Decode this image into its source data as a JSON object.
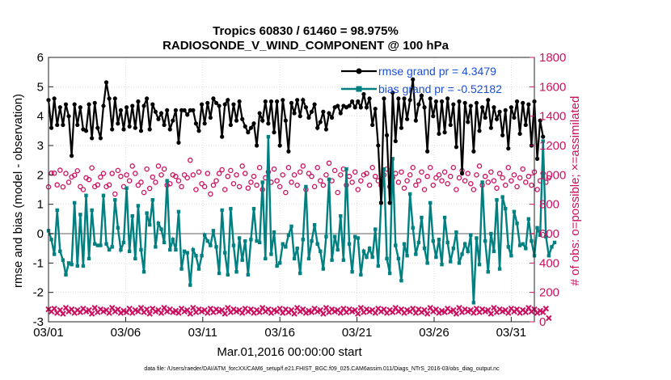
{
  "chart_data": {
    "type": "line",
    "title_line1": "Tropics 60830 / 61460 = 98.975%",
    "title_line2": "RADIOSONDE_V_WIND_COMPONENT @ 100 hPa",
    "xlabel": "Mar.01,2016 00:00:00 start",
    "ylabel_left": "rmse and bias (model - observation)",
    "ylabel_right": "# of obs: o=possible; ×=assimilated",
    "footer": "data file: /Users/raeder/DAI/ATM_forcXX/CAM6_setup/f.e21.FHIST_BGC.f09_025.CAM6assim.011/Diags_NTrS_2016-03/obs_diag_output.nc",
    "x_tick_labels": [
      "03/01",
      "03/06",
      "03/11",
      "03/16",
      "03/21",
      "03/26",
      "03/31"
    ],
    "x_tick_days": [
      0,
      5,
      10,
      15,
      20,
      25,
      30
    ],
    "xlim": [
      0,
      31.5
    ],
    "ylim_left": [
      -3,
      6
    ],
    "yticks_left": [
      "-3",
      "-2",
      "-1",
      "0",
      "1",
      "2",
      "3",
      "4",
      "5",
      "6"
    ],
    "ylim_right": [
      0,
      1800
    ],
    "yticks_right": [
      "0",
      "200",
      "400",
      "600",
      "800",
      "1000",
      "1200",
      "1400",
      "1600",
      "1800"
    ],
    "colors": {
      "rmse": "#000000",
      "bias": "#008080",
      "obs": "#cc1060",
      "zero_line": "#b0b0b0",
      "legend_text": "#1a4fd6"
    },
    "series": [
      {
        "name": "rmse grand pr = 4.3479",
        "axis": "left",
        "values": [
          4.55,
          3.6,
          4.6,
          3.7,
          4.3,
          3.7,
          4.4,
          4.0,
          2.65,
          4.4,
          3.7,
          4.3,
          3.55,
          3.5,
          4.4,
          3.25,
          4.45,
          3.6,
          3.25,
          4.35,
          5.15,
          4.6,
          3.55,
          4.6,
          3.75,
          4.2,
          3.55,
          4.3,
          3.65,
          4.35,
          3.6,
          4.5,
          3.5,
          4.35,
          4.6,
          3.55,
          4.4,
          4.15,
          3.9,
          4.1,
          3.7,
          4.2,
          3.55,
          3.85,
          4.2,
          3.1,
          4.2,
          4.2,
          4.05,
          4.2,
          4.2,
          3.75,
          3.5,
          4.4,
          3.75,
          4.45,
          3.95,
          4.6,
          4.45,
          4.35,
          3.3,
          4.4,
          4.55,
          3.7,
          4.4,
          3.85,
          4.5,
          3.9,
          3.65,
          3.45,
          3.6,
          3.75,
          3.0,
          4.1,
          3.85,
          4.5,
          3.75,
          4.5,
          3.45,
          4.5,
          3.0,
          4.55,
          3.85,
          2.8,
          4.45,
          4.1,
          4.55,
          4.0,
          4.55,
          4.3,
          3.95,
          4.15,
          4.4,
          3.6,
          3.8,
          4.15,
          3.55,
          4.1,
          3.95,
          4.3,
          4.35,
          4.1,
          4.35,
          4.3,
          4.35,
          4.5,
          4.3,
          4.5,
          4.3,
          4.75,
          4.3,
          4.6,
          3.7,
          4.25,
          3.0,
          1.05,
          4.6,
          3.35,
          1.05,
          4.8,
          3.15,
          4.6,
          3.6,
          4.6,
          3.9,
          4.55,
          5.25,
          3.85,
          4.4,
          4.7,
          4.3,
          2.8,
          4.6,
          4.0,
          4.5,
          3.4,
          4.5,
          3.45,
          4.6,
          3.7,
          4.4,
          2.95,
          4.5,
          2.05,
          4.45,
          3.8,
          4.35,
          2.8,
          4.45,
          3.5,
          4.3,
          3.95,
          4.55,
          3.6,
          4.3,
          3.9,
          4.15,
          3.35,
          4.2,
          2.9,
          4.3,
          3.95,
          4.5,
          3.4,
          4.45,
          3.7,
          4.4,
          3.0,
          4.5,
          2.55,
          3.85,
          3.3
        ],
        "x_start": 0,
        "x_step": 0.1875
      },
      {
        "name": "bias grand pr = -0.52182",
        "axis": "left",
        "values": [
          0.1,
          -0.2,
          -0.7,
          0.8,
          -0.6,
          -0.9,
          -1.4,
          -1.0,
          -1.05,
          1.05,
          -1.1,
          0.65,
          -1.1,
          1.3,
          -0.85,
          0.8,
          -0.35,
          -0.4,
          -0.4,
          1.3,
          -0.35,
          -0.55,
          -0.45,
          1.15,
          0.2,
          -0.55,
          -0.3,
          1.55,
          -0.6,
          0.6,
          -0.85,
          0.95,
          -0.55,
          -1.3,
          0.7,
          0.3,
          1.15,
          -0.45,
          0.35,
          0.15,
          -0.3,
          1.8,
          -0.55,
          -0.2,
          -0.55,
          0.75,
          -1.2,
          -0.6,
          -0.65,
          -1.75,
          -0.55,
          -0.75,
          -1.2,
          -0.75,
          -0.05,
          -0.25,
          -0.4,
          0.1,
          -0.45,
          -1.35,
          0.8,
          -0.65,
          -1.4,
          0.85,
          -0.4,
          -1.3,
          -0.15,
          -0.9,
          -0.25,
          -1.4,
          -0.2,
          0.85,
          -0.25,
          -0.3,
          1.75,
          -0.85,
          3.3,
          -0.7,
          0.05,
          -1.1,
          -1.0,
          -0.35,
          -0.45,
          -0.05,
          0.25,
          -0.85,
          -0.5,
          -1.35,
          -0.2,
          1.6,
          -0.85,
          -0.25,
          0.3,
          -0.35,
          -0.6,
          -1.2,
          -0.1,
          1.85,
          -0.9,
          -0.1,
          -0.55,
          0.6,
          -0.9,
          2.2,
          -0.35,
          -1.3,
          -0.1,
          -0.15,
          -1.4,
          -0.6,
          -0.8,
          -0.5,
          -0.8,
          0.15,
          -1.1,
          1.05,
          2.2,
          -0.85,
          -1.35,
          2.55,
          -0.4,
          -0.85,
          -1.6,
          -0.35,
          -0.75,
          1.35,
          0.2,
          -0.7,
          -0.3,
          0.55,
          -0.5,
          -1.0,
          1.05,
          -0.25,
          -0.8,
          -0.2,
          -1.05,
          0.55,
          -0.3,
          -0.95,
          -0.5,
          0.05,
          -1.0,
          -0.7,
          -0.35,
          -0.6,
          -0.05,
          -2.35,
          -0.15,
          -1.05,
          1.75,
          -0.25,
          -1.3,
          0.0,
          -0.6,
          1.15,
          -1.2,
          1.25,
          0.85,
          -0.45,
          -0.75,
          0.75,
          0.35,
          -0.4,
          -0.35,
          -0.5,
          0.5,
          -0.25,
          -0.75,
          0.2,
          -0.05,
          3.15,
          -0.1,
          -0.75,
          -0.45,
          -0.3
        ],
        "x_start": 0,
        "x_step": 0.1875
      },
      {
        "name": "obs possible",
        "axis": "right",
        "marker": "o",
        "values": [
          918,
          1012,
          1012,
          932,
          1032,
          918,
          1010,
          950,
          986,
          998,
          1028,
          920,
          900,
          980,
          968,
          1048,
          920,
          932,
          985,
          1010,
          920,
          932,
          1010,
          870,
          1030,
          990,
          920,
          1000,
          960,
          1060,
          1010,
          930,
          950,
          880,
          1040,
          908,
          985,
          950,
          1060,
          1000,
          1040,
          930,
          940,
          1000,
          990,
          960,
          920,
          1000,
          980,
          1100,
          1000,
          900,
          1020,
          940,
          920,
          1010,
          870,
          930,
          960,
          1010,
          1035,
          900,
          990,
          1030,
          940,
          1000,
          920,
          1060,
          1010,
          910,
          950,
          990,
          930,
          1050,
          900,
          980,
          1020,
          950,
          1040,
          960,
          920,
          1000,
          880,
          1050,
          950,
          1000,
          930,
          1020,
          1060,
          900,
          1010,
          990,
          920,
          1050,
          960,
          930,
          1000,
          1080,
          960,
          1030,
          880,
          1000,
          1040,
          930,
          990,
          950,
          1020,
          900,
          960,
          1000,
          1010,
          930,
          1050,
          990,
          960,
          930,
          1000,
          1040,
          920,
          980,
          1010,
          950,
          1020,
          910,
          960,
          1000,
          1050,
          930,
          960,
          1020,
          900,
          990,
          1050,
          930,
          980,
          1000,
          960,
          1020,
          940,
          990,
          1050,
          900,
          980,
          1030,
          960,
          1010,
          940,
          900,
          1000,
          1060,
          930,
          990,
          950,
          1020,
          960,
          910,
          1010,
          980,
          930,
          1050,
          960,
          1000,
          920,
          980,
          1040,
          950,
          990,
          930,
          1020,
          900,
          960,
          1010,
          950,
          980
        ],
        "x_start": 0,
        "x_step": 0.1875
      },
      {
        "name": "obs assimilated",
        "axis": "right",
        "marker": "x",
        "values": [
          85,
          70,
          90,
          60,
          80,
          55,
          95,
          70,
          85,
          60,
          80,
          65,
          90,
          70,
          80,
          55,
          95,
          65,
          85,
          70,
          80,
          60,
          95,
          70,
          85,
          60,
          75,
          65,
          90,
          60,
          80,
          70,
          95,
          65,
          85,
          55,
          90,
          70,
          80,
          60,
          95,
          70,
          85,
          65,
          75,
          60,
          90,
          70,
          80,
          55,
          95,
          65,
          85,
          70,
          80,
          60,
          90,
          65,
          85,
          70,
          80,
          55,
          95,
          65,
          85,
          70,
          80,
          60,
          90,
          70,
          85,
          60,
          80,
          65,
          95,
          70,
          85,
          60,
          80,
          70,
          90,
          60,
          85,
          65,
          80,
          55,
          95,
          70,
          85,
          60,
          75,
          65,
          90,
          70,
          80,
          55,
          95,
          65,
          85,
          70,
          80,
          60,
          90,
          65,
          85,
          70,
          80,
          55,
          95,
          65,
          85,
          70,
          80,
          60,
          90,
          70,
          85,
          60,
          80,
          65,
          95,
          70,
          85,
          60,
          80,
          70,
          90,
          60,
          85,
          65,
          80,
          55,
          95,
          70,
          85,
          60,
          75,
          65,
          90,
          70,
          80,
          55,
          95,
          65,
          85,
          70,
          80,
          60,
          90,
          65,
          85,
          70,
          80,
          55,
          95,
          65,
          85,
          70,
          80,
          60,
          90,
          70,
          85,
          60,
          80,
          65,
          95,
          70,
          85,
          60,
          75,
          65,
          90,
          25
        ],
        "x_start": 0,
        "x_step": 0.1875
      }
    ],
    "legend": [
      "rmse grand pr = 4.3479",
      "bias grand pr = -0.52182"
    ],
    "legend_position": "top-right"
  }
}
